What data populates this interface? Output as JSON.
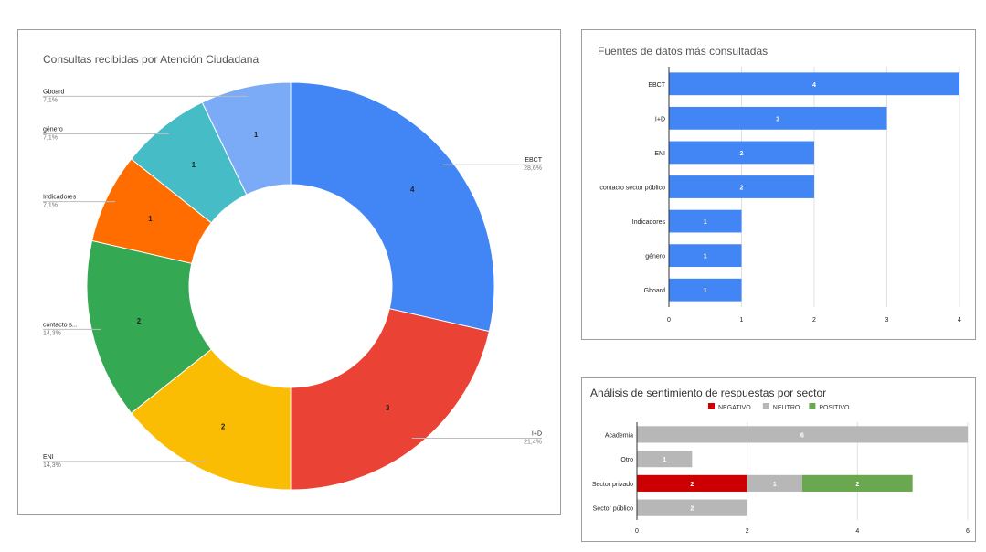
{
  "chart_data": [
    {
      "type": "pie",
      "title": "Consultas recibidas por Atención Ciudadana",
      "donut": true,
      "categories": [
        "EBCT",
        "I+D",
        "ENI",
        "contacto sector público",
        "Indicadores",
        "género",
        "Gboard"
      ],
      "values": [
        4,
        3,
        2,
        2,
        1,
        1,
        1
      ],
      "label_names": [
        "EBCT",
        "I+D",
        "ENI",
        "contacto s...",
        "Indicadores",
        "género",
        "Gboard"
      ],
      "percent_labels": [
        "28,6%",
        "21,4%",
        "14,3%",
        "14,3%",
        "7,1%",
        "7,1%",
        "7,1%"
      ],
      "colors": [
        "#4285f4",
        "#ea4335",
        "#fbbc04",
        "#34a853",
        "#ff6d01",
        "#46bdc6",
        "#7baaf7"
      ]
    },
    {
      "type": "bar",
      "orientation": "horizontal",
      "title": "Fuentes de datos más consultadas",
      "categories": [
        "EBCT",
        "I+D",
        "ENI",
        "contacto sector público",
        "Indicadores",
        "género",
        "Gboard"
      ],
      "values": [
        4,
        3,
        2,
        2,
        1,
        1,
        1
      ],
      "xlim": [
        0,
        4
      ],
      "xticks": [
        "0",
        "1",
        "2",
        "3",
        "4"
      ],
      "grid": true,
      "color": "#4285f4"
    },
    {
      "type": "bar",
      "orientation": "horizontal",
      "stacked": true,
      "title": "Análisis de sentimiento de respuestas por sector",
      "categories": [
        "Academia",
        "Otro",
        "Sector privado",
        "Sector público"
      ],
      "series": [
        {
          "name": "NEGATIVO",
          "values": [
            0,
            0,
            2,
            0
          ],
          "color": "#cc0000"
        },
        {
          "name": "NEUTRO",
          "values": [
            6,
            1,
            1,
            2
          ],
          "color": "#b7b7b7"
        },
        {
          "name": "POSITIVO",
          "values": [
            0,
            0,
            2,
            0
          ],
          "color": "#6aa84f"
        }
      ],
      "xlim": [
        0,
        6
      ],
      "xticks": [
        "0",
        "2",
        "4",
        "6"
      ],
      "legend_position": "top",
      "grid": true
    }
  ]
}
